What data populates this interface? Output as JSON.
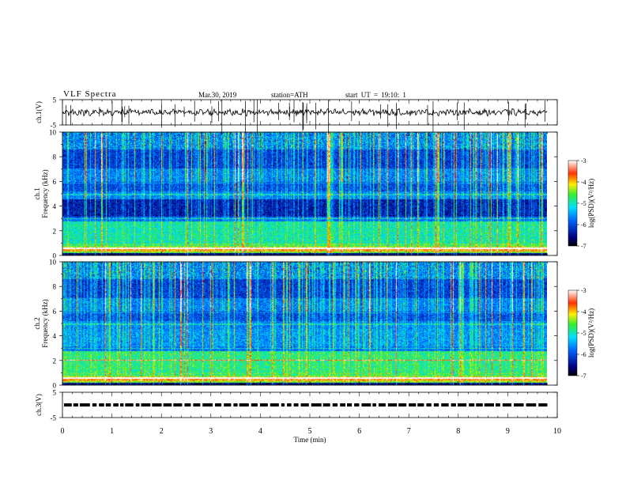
{
  "header": {
    "title": "VLF Spectra",
    "date": "Mar.30, 2019",
    "station": "station=ATH",
    "start_ut": "start UT = 19:10: 1"
  },
  "chart_data": [
    {
      "type": "line",
      "panel": "ch1-waveform",
      "ylabel": "ch.1(V)",
      "ylim": [
        -5,
        5
      ],
      "yticks": [
        "5",
        "-5"
      ],
      "xlim": [
        0,
        10
      ],
      "data_end_min": 9.8,
      "baseline": 0
    },
    {
      "type": "heatmap",
      "panel": "ch1-spectrogram",
      "ylabel_lines": [
        "ch.1",
        "Frequency (kHz)"
      ],
      "ylim": [
        0,
        10
      ],
      "yticks": [
        "0",
        "2",
        "4",
        "6",
        "8",
        "10"
      ],
      "xlim": [
        0,
        10
      ],
      "data_end_min": 9.8,
      "colorbar": {
        "label": "log(PSD)(V²/Hz)",
        "range": [
          -7,
          -3
        ],
        "ticks": [
          "-3",
          "-4",
          "-5",
          "-6",
          "-7"
        ]
      }
    },
    {
      "type": "heatmap",
      "panel": "ch2-spectrogram",
      "ylabel_lines": [
        "ch.2",
        "Frequency (kHz)"
      ],
      "ylim": [
        0,
        10
      ],
      "yticks": [
        "0",
        "2",
        "4",
        "6",
        "8",
        "10"
      ],
      "xlim": [
        0,
        10
      ],
      "data_end_min": 9.8,
      "colorbar": {
        "label": "log(PSD)(V²/Hz)",
        "range": [
          -7,
          -3
        ],
        "ticks": [
          "-3",
          "-4",
          "-5",
          "-6",
          "-7"
        ]
      }
    },
    {
      "type": "line",
      "panel": "ch3-waveform",
      "ylabel": "ch.3(V)",
      "ylim": [
        -5,
        5
      ],
      "yticks": [
        "5",
        "-5"
      ],
      "xlim": [
        0,
        10
      ],
      "data_end_min": 9.8,
      "baseline": 0
    }
  ],
  "xaxis": {
    "label": "Time (min)",
    "ticks": [
      "0",
      "1",
      "2",
      "3",
      "4",
      "5",
      "6",
      "7",
      "8",
      "9",
      "10"
    ]
  }
}
